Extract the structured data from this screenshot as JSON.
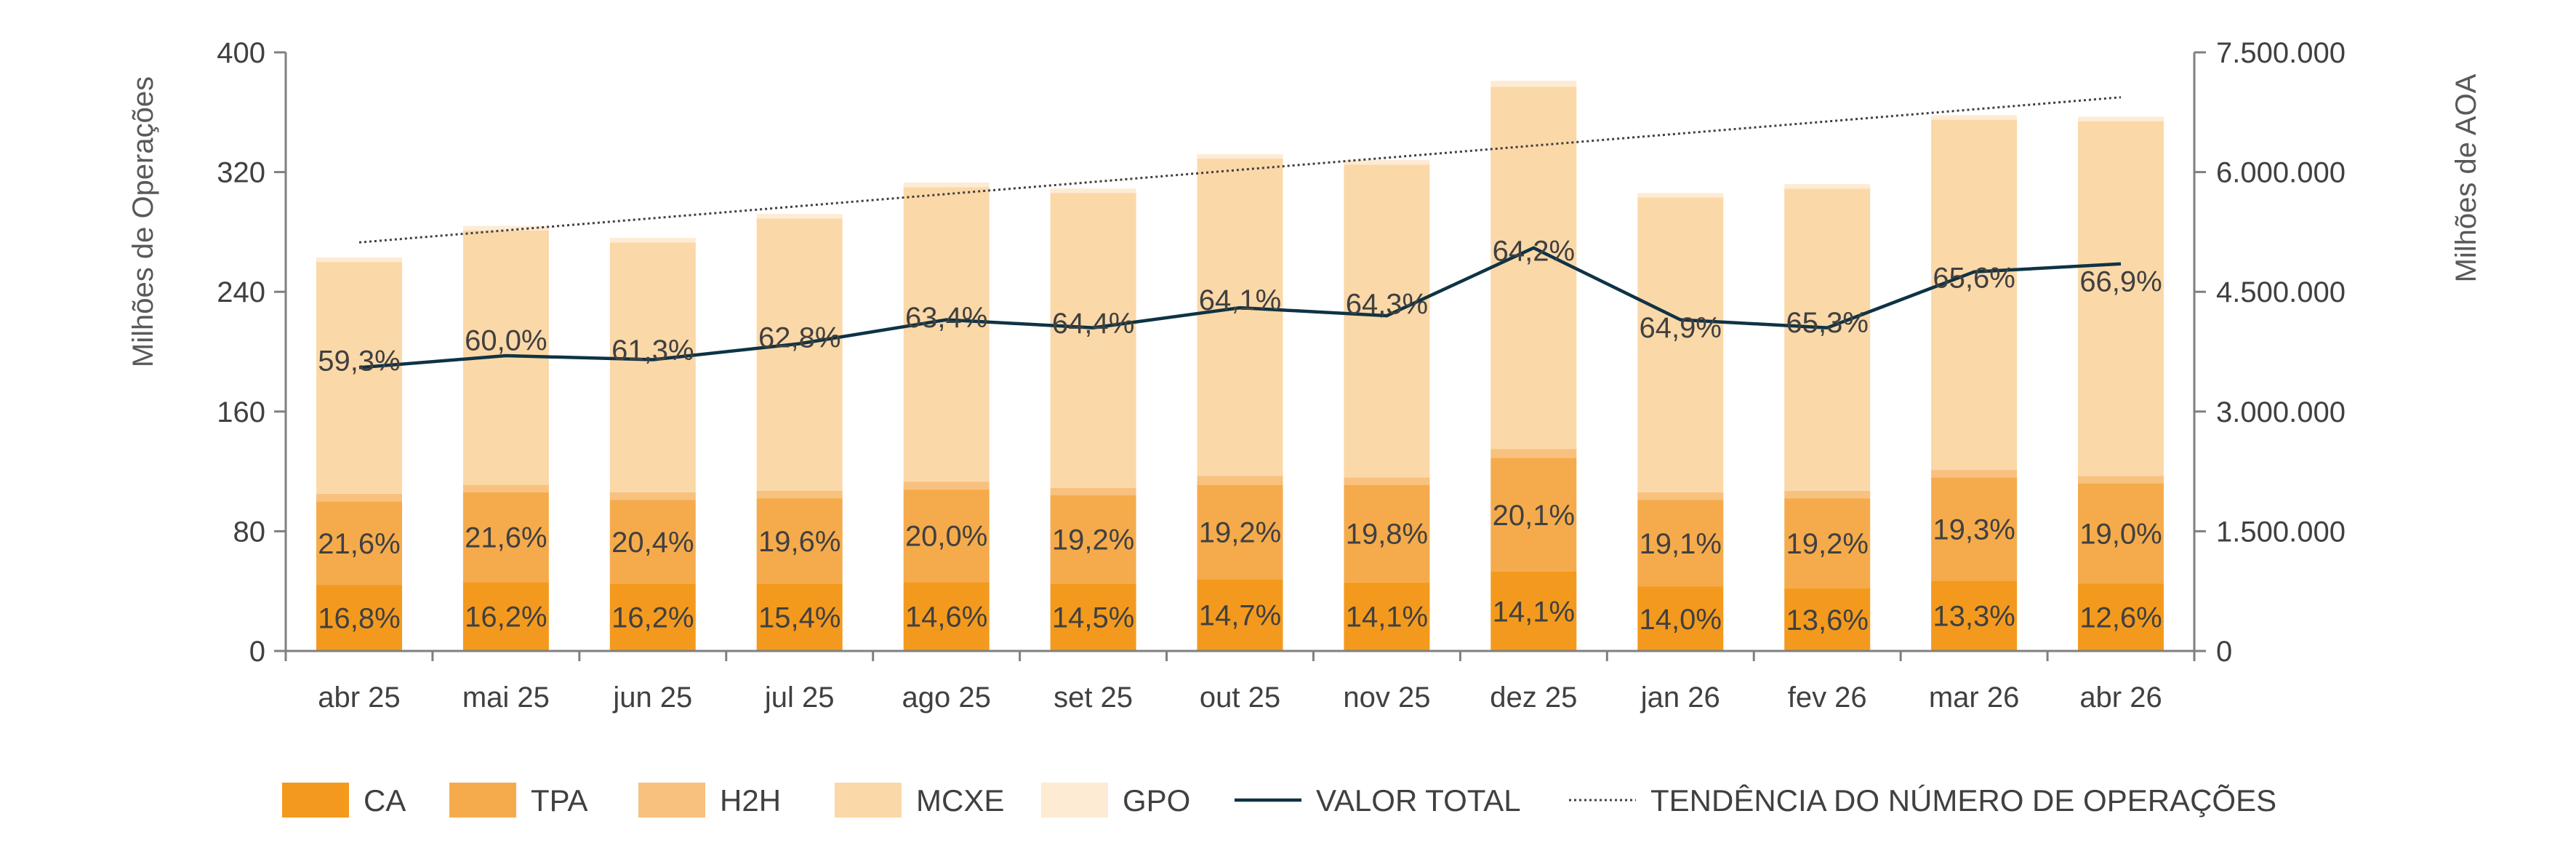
{
  "chart_data": {
    "type": "bar",
    "stacked": true,
    "categories": [
      "abr 25",
      "mai 25",
      "jun 25",
      "jul 25",
      "ago 25",
      "set 25",
      "out 25",
      "nov 25",
      "dez 25",
      "jan 26",
      "fev 26",
      "mar 26",
      "abr 26"
    ],
    "ylabel": "Milhões de Operações",
    "ylabel_right": "Milhões de AOA",
    "ylim": [
      0,
      400
    ],
    "ylim_right": [
      0,
      7500000
    ],
    "yticks": [
      "0",
      "80",
      "160",
      "240",
      "320",
      "400"
    ],
    "yticks_right": [
      "0",
      "1.500.000",
      "3.000.000",
      "4.500.000",
      "6.000.000",
      "7.500.000"
    ],
    "legend_position": "bottom",
    "series": [
      {
        "name": "CA",
        "color": "#F39A1E",
        "values": [
          44,
          46,
          45,
          45,
          46,
          45,
          48,
          46,
          53,
          43,
          42,
          47,
          45
        ]
      },
      {
        "name": "TPA",
        "color": "#F5AB4C",
        "values": [
          56,
          60,
          56,
          57,
          62,
          59,
          63,
          65,
          76,
          58,
          60,
          69,
          67
        ]
      },
      {
        "name": "H2H",
        "color": "#F8C17E",
        "values": [
          5,
          5,
          5,
          5,
          5,
          5,
          6,
          5,
          6,
          5,
          5,
          5,
          5
        ]
      },
      {
        "name": "MCXE",
        "color": "#FBD8A8",
        "values": [
          155,
          170,
          167,
          182,
          197,
          197,
          212,
          209,
          242,
          197,
          202,
          234,
          237
        ]
      },
      {
        "name": "GPO",
        "color": "#FDEBD3",
        "values": [
          3,
          3,
          3,
          3,
          3,
          3,
          3,
          3,
          4,
          3,
          3,
          3,
          3
        ]
      }
    ],
    "line_series": [
      {
        "name": "VALOR TOTAL",
        "color": "#0E3344",
        "axis": "right",
        "values": [
          3550000,
          3700000,
          3650000,
          3850000,
          4150000,
          4050000,
          4300000,
          4200000,
          5050000,
          4150000,
          4050000,
          4750000,
          4850000
        ]
      },
      {
        "name": "TENDÊNCIA DO NÚMERO DE OPERAÇÕES",
        "color": "#404040",
        "style": "dotted",
        "axis": "left",
        "values": [
          273,
          281,
          289,
          297,
          305,
          313,
          321,
          329,
          337,
          345,
          353,
          361,
          370
        ]
      }
    ],
    "data_labels": {
      "CA": [
        "16,8%",
        "16,2%",
        "16,2%",
        "15,4%",
        "14,6%",
        "14,5%",
        "14,7%",
        "14,1%",
        "14,1%",
        "14,0%",
        "13,6%",
        "13,3%",
        "12,6%"
      ],
      "TPA": [
        "21,6%",
        "21,6%",
        "20,4%",
        "19,6%",
        "20,0%",
        "19,2%",
        "19,2%",
        "19,8%",
        "20,1%",
        "19,1%",
        "19,2%",
        "19,3%",
        "19,0%"
      ],
      "MCXE": [
        "59,3%",
        "60,0%",
        "61,3%",
        "62,8%",
        "63,4%",
        "64,4%",
        "64,1%",
        "64,3%",
        "64,2%",
        "64,9%",
        "65,3%",
        "65,6%",
        "66,9%"
      ]
    },
    "legend": [
      "CA",
      "TPA",
      "H2H",
      "MCXE",
      "GPO",
      "VALOR TOTAL",
      "TENDÊNCIA DO NÚMERO DE OPERAÇÕES"
    ]
  }
}
